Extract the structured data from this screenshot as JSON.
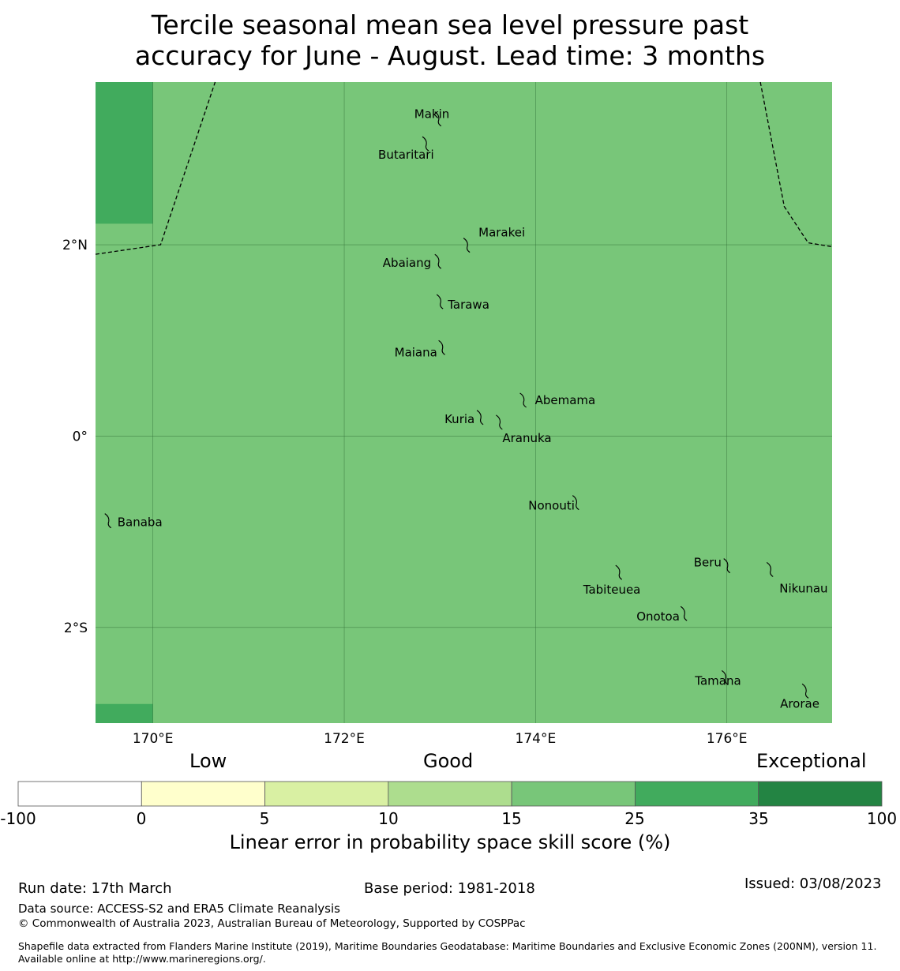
{
  "title": {
    "line1": "Tercile seasonal mean sea level pressure past",
    "line2": "accuracy for June - August. Lead time: 3 months"
  },
  "map": {
    "lon_range": [
      169.4,
      177.1
    ],
    "lat_range": [
      -3.0,
      3.7
    ],
    "lon_ticks": [
      {
        "value": 170,
        "label": "170°E"
      },
      {
        "value": 172,
        "label": "172°E"
      },
      {
        "value": 174,
        "label": "174°E"
      },
      {
        "value": 176,
        "label": "176°E"
      }
    ],
    "lat_ticks": [
      {
        "value": 2,
        "label": "2°N"
      },
      {
        "value": 0,
        "label": "0°"
      },
      {
        "value": -2,
        "label": "2°S"
      }
    ],
    "background_category": "15-25",
    "background_color": "#78c679",
    "high_cells_color": "#41ab5d",
    "high_cells": [
      {
        "lon0": 169.4,
        "lon1": 170.0,
        "lat0": 2.22,
        "lat1": 3.7
      },
      {
        "lon0": 169.4,
        "lon1": 170.0,
        "lat0": -3.0,
        "lat1": -2.8
      }
    ],
    "eez_boundaries": [
      [
        [
          169.4,
          1.9
        ],
        [
          170.08,
          2.0
        ],
        [
          170.65,
          3.7
        ]
      ],
      [
        [
          176.35,
          3.7
        ],
        [
          176.6,
          2.4
        ],
        [
          176.85,
          2.02
        ],
        [
          177.1,
          1.98
        ]
      ]
    ],
    "islands": [
      {
        "name": "Makin",
        "lon": 172.98,
        "lat": 3.34
      },
      {
        "name": "Butaritari",
        "lon": 172.85,
        "lat": 3.08
      },
      {
        "name": "Marakei",
        "lon": 173.28,
        "lat": 2.02
      },
      {
        "name": "Abaiang",
        "lon": 172.98,
        "lat": 1.85
      },
      {
        "name": "Tarawa",
        "lon": 173.0,
        "lat": 1.43
      },
      {
        "name": "Maiana",
        "lon": 173.02,
        "lat": 0.95
      },
      {
        "name": "Abemama",
        "lon": 173.87,
        "lat": 0.4
      },
      {
        "name": "Kuria",
        "lon": 173.42,
        "lat": 0.22
      },
      {
        "name": "Aranuka",
        "lon": 173.62,
        "lat": 0.17
      },
      {
        "name": "Nonouti",
        "lon": 174.42,
        "lat": -0.67
      },
      {
        "name": "Banaba",
        "lon": 169.53,
        "lat": -0.86
      },
      {
        "name": "Tabiteuea",
        "lon": 174.87,
        "lat": -1.4
      },
      {
        "name": "Beru",
        "lon": 176.0,
        "lat": -1.33
      },
      {
        "name": "Nikunau",
        "lon": 176.45,
        "lat": -1.37
      },
      {
        "name": "Onotoa",
        "lon": 175.55,
        "lat": -1.83
      },
      {
        "name": "Tamana",
        "lon": 175.98,
        "lat": -2.5
      },
      {
        "name": "Arorae",
        "lon": 176.82,
        "lat": -2.64
      }
    ]
  },
  "colorbar": {
    "categories": [
      "Low",
      "Good",
      "Exceptional"
    ],
    "bins": [
      {
        "from": "-100",
        "to": "0",
        "color": "#ffffff"
      },
      {
        "from": "0",
        "to": "5",
        "color": "#ffffcc"
      },
      {
        "from": "5",
        "to": "10",
        "color": "#d9f0a3"
      },
      {
        "from": "10",
        "to": "15",
        "color": "#addd8e"
      },
      {
        "from": "15",
        "to": "25",
        "color": "#78c679"
      },
      {
        "from": "25",
        "to": "35",
        "color": "#41ab5d"
      },
      {
        "from": "35",
        "to": "100",
        "color": "#238443"
      }
    ],
    "ticks": [
      "-100",
      "0",
      "5",
      "10",
      "15",
      "25",
      "35",
      "100"
    ],
    "label": "Linear error in probability space skill score (%)"
  },
  "footer": {
    "run_date": "Run date: 17th March",
    "base_period": "Base period: 1981-2018",
    "issued": "Issued: 03/08/2023",
    "data_source": "Data source: ACCESS-S2 and ERA5 Climate Reanalysis",
    "copyright": "© Commonwealth of Australia 2023, Australian Bureau of Meteorology, Supported by COSPPac",
    "shapefile": "Shapefile data extracted from Flanders Marine Institute (2019), Maritime Boundaries Geodatabase: Maritime Boundaries and Exclusive Economic Zones (200NM), version 11. Available online at http://www.marineregions.org/."
  }
}
